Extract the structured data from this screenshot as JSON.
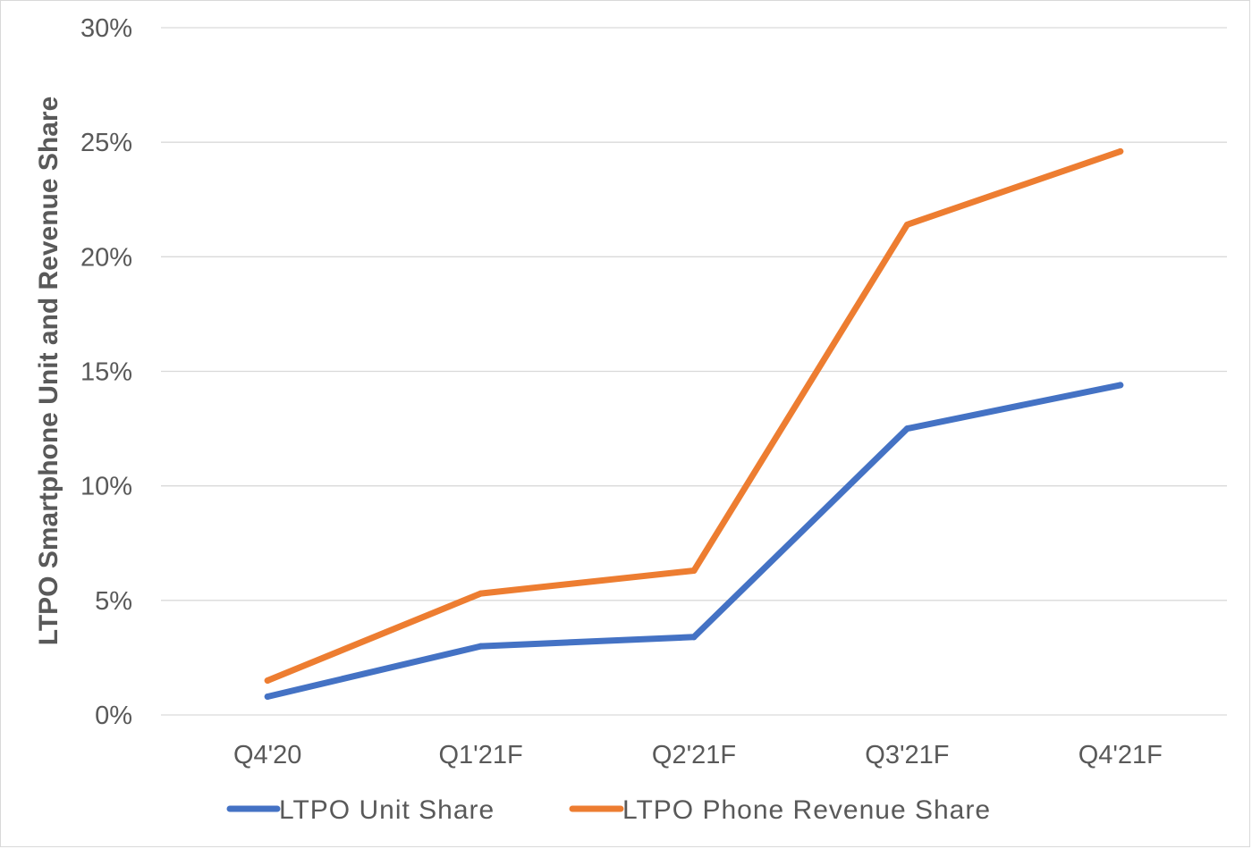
{
  "chart_data": {
    "type": "line",
    "title": "",
    "xlabel": "",
    "ylabel": "LTPO Smartphone Unit and Revenue Share",
    "categories": [
      "Q4'20",
      "Q1'21F",
      "Q2'21F",
      "Q3'21F",
      "Q4'21F"
    ],
    "ylim": [
      0,
      30
    ],
    "yticks": [
      {
        "value": 0,
        "label": "0%"
      },
      {
        "value": 5,
        "label": "5%"
      },
      {
        "value": 10,
        "label": "10%"
      },
      {
        "value": 15,
        "label": "15%"
      },
      {
        "value": 20,
        "label": "20%"
      },
      {
        "value": 25,
        "label": "25%"
      },
      {
        "value": 30,
        "label": "30%"
      }
    ],
    "grid": true,
    "legend_position": "bottom",
    "series": [
      {
        "name": "LTPO Unit Share",
        "color": "#4472C4",
        "values": [
          0.8,
          3.0,
          3.4,
          12.5,
          14.4
        ]
      },
      {
        "name": "LTPO Phone Revenue Share",
        "color": "#ED7D31",
        "values": [
          1.5,
          5.3,
          6.3,
          21.4,
          24.6
        ]
      }
    ]
  }
}
